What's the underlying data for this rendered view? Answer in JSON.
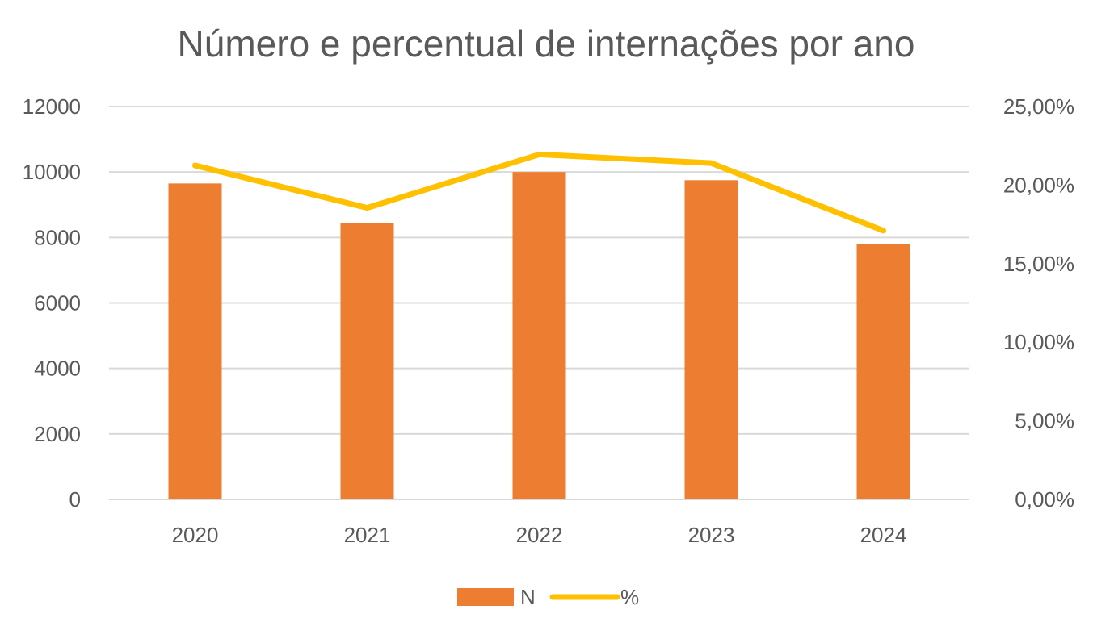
{
  "chart_data": {
    "type": "bar",
    "title": "Número e percentual de internações por ano",
    "categories": [
      "2020",
      "2021",
      "2022",
      "2023",
      "2024"
    ],
    "series": [
      {
        "name": "N",
        "type": "bar",
        "axis": "left",
        "color": "#ED7D31",
        "values": [
          9650,
          8450,
          10000,
          9750,
          7800
        ]
      },
      {
        "name": "%",
        "type": "line",
        "axis": "right",
        "color": "#FFC000",
        "values": [
          0.2125,
          0.1855,
          0.2195,
          0.214,
          0.171
        ]
      }
    ],
    "y_left": {
      "min": 0,
      "max": 12000,
      "ticks": [
        0,
        2000,
        4000,
        6000,
        8000,
        10000,
        12000
      ],
      "tick_labels": [
        "0",
        "2000",
        "4000",
        "6000",
        "8000",
        "10000",
        "12000"
      ]
    },
    "y_right": {
      "min": 0,
      "max": 0.25,
      "ticks": [
        0,
        0.05,
        0.1,
        0.15,
        0.2,
        0.25
      ],
      "tick_labels": [
        "0,00%",
        "5,00%",
        "10,00%",
        "15,00%",
        "20,00%",
        "25,00%"
      ]
    },
    "xlabel": "",
    "ylabel": "",
    "grid": true,
    "legend_position": "bottom"
  },
  "colors": {
    "background": "#FFFFFF",
    "gridline": "#D9D9D9",
    "text": "#595959"
  }
}
